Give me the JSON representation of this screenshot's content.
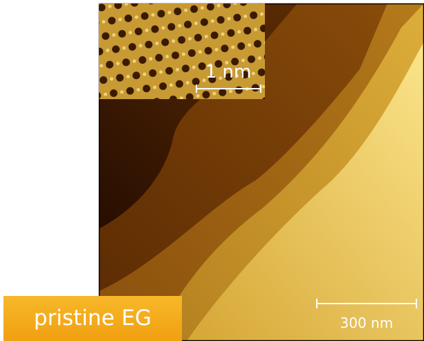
{
  "image": {
    "inset": {
      "scale_label": "1 nm"
    },
    "scale_label": "300 nm"
  },
  "label": "pristine EG"
}
